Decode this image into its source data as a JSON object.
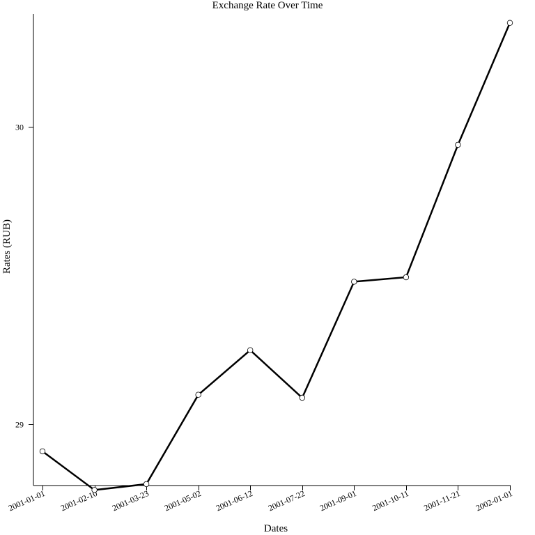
{
  "chart_data": {
    "type": "line",
    "title": "Exchange Rate Over Time",
    "xlabel": "Dates",
    "ylabel": "Rates (RUB)",
    "x": [
      "2001-01-01",
      "2001-02-10",
      "2001-03-23",
      "2001-05-02",
      "2001-06-12",
      "2001-07-22",
      "2001-09-01",
      "2001-10-11",
      "2001-11-21",
      "2002-01-01"
    ],
    "values": [
      28.91,
      28.78,
      28.8,
      29.1,
      29.25,
      29.09,
      29.48,
      29.495,
      29.94,
      30.35
    ],
    "ylim": [
      28.795,
      30.38
    ],
    "yticks": [
      29,
      30
    ],
    "grid": false,
    "legend": "none",
    "line_color": "#000000",
    "marker": "open-circle"
  }
}
